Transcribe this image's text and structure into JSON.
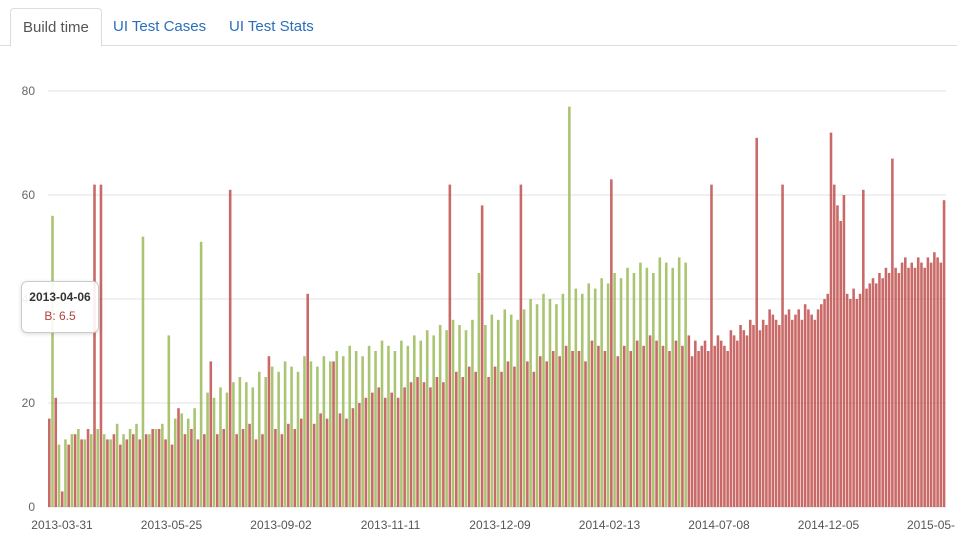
{
  "tabs": [
    {
      "label": "Build time",
      "active": true
    },
    {
      "label": "UI Test Cases",
      "active": false
    },
    {
      "label": "UI Test Stats",
      "active": false
    }
  ],
  "tooltip": {
    "date": "2013-04-06",
    "value_text": "B: 6.5"
  },
  "colors": {
    "red": "#c0504d",
    "green": "#9bbb59",
    "grid": "#e0e0e0",
    "link": "#2a6ebb"
  },
  "chart_data": {
    "type": "bar",
    "title": "",
    "xlabel": "",
    "ylabel": "",
    "ylim": [
      0,
      80
    ],
    "yticks": [
      0,
      20,
      40,
      60,
      80
    ],
    "xtick_labels": [
      "2013-03-31",
      "2013-05-25",
      "2013-09-02",
      "2013-11-11",
      "2013-12-09",
      "2014-02-13",
      "2014-07-08",
      "2014-12-05",
      "2015-05-"
    ],
    "grid": true,
    "series": [
      {
        "color": "red",
        "values": [
          17,
          21,
          3,
          12,
          14,
          13,
          15,
          62,
          62,
          13,
          14,
          12,
          13,
          14,
          13,
          14,
          15,
          15,
          13,
          12,
          19,
          14,
          15,
          13,
          14,
          28,
          14,
          15,
          61,
          14,
          15,
          16,
          13,
          14,
          29,
          15,
          14,
          16,
          15,
          17,
          41,
          16,
          18,
          17,
          28,
          18,
          17,
          19,
          20,
          21,
          22,
          23,
          21,
          22,
          21,
          23,
          24,
          25,
          24,
          23,
          25,
          24,
          62,
          26,
          25,
          27,
          26,
          58,
          25,
          27,
          26,
          28,
          27,
          62,
          28,
          26,
          29,
          28,
          30,
          29,
          31,
          30,
          30,
          28,
          32,
          31,
          30,
          63,
          29,
          31,
          30,
          32,
          31,
          33,
          32,
          31,
          30,
          32,
          31,
          33,
          29,
          32,
          30,
          31,
          32,
          30,
          62,
          31,
          33,
          32,
          31,
          30,
          34,
          33,
          32,
          35,
          34,
          33,
          36,
          35,
          71,
          34,
          36,
          35,
          38,
          37,
          36,
          35,
          62,
          37,
          38,
          36,
          37,
          38,
          36,
          39,
          38,
          37,
          36,
          38,
          39,
          40,
          41,
          72,
          62,
          58,
          55,
          60,
          41,
          40,
          42,
          40,
          41,
          61,
          42,
          43,
          44,
          43,
          45,
          44,
          46,
          45,
          67,
          46,
          45,
          47,
          48,
          46,
          47,
          46,
          48,
          47,
          46,
          48,
          47,
          49,
          48,
          47,
          59
        ]
      },
      {
        "color": "green",
        "values": [
          56,
          12,
          13,
          14,
          15,
          13,
          14,
          15,
          14,
          13,
          16,
          14,
          15,
          16,
          52,
          14,
          15,
          16,
          33,
          17,
          18,
          17,
          19,
          51,
          22,
          21,
          23,
          22,
          24,
          25,
          24,
          23,
          26,
          25,
          27,
          26,
          28,
          27,
          26,
          29,
          28,
          27,
          29,
          28,
          30,
          29,
          31,
          30,
          29,
          31,
          30,
          32,
          31,
          30,
          32,
          31,
          33,
          32,
          34,
          33,
          35,
          34,
          36,
          35,
          34,
          36,
          45,
          35,
          37,
          36,
          38,
          37,
          36,
          38,
          40,
          39,
          41,
          40,
          39,
          41,
          77,
          42,
          41,
          43,
          42,
          44,
          43,
          45,
          44,
          46,
          45,
          47,
          46,
          45,
          48,
          47,
          46,
          48,
          47
        ]
      }
    ]
  }
}
